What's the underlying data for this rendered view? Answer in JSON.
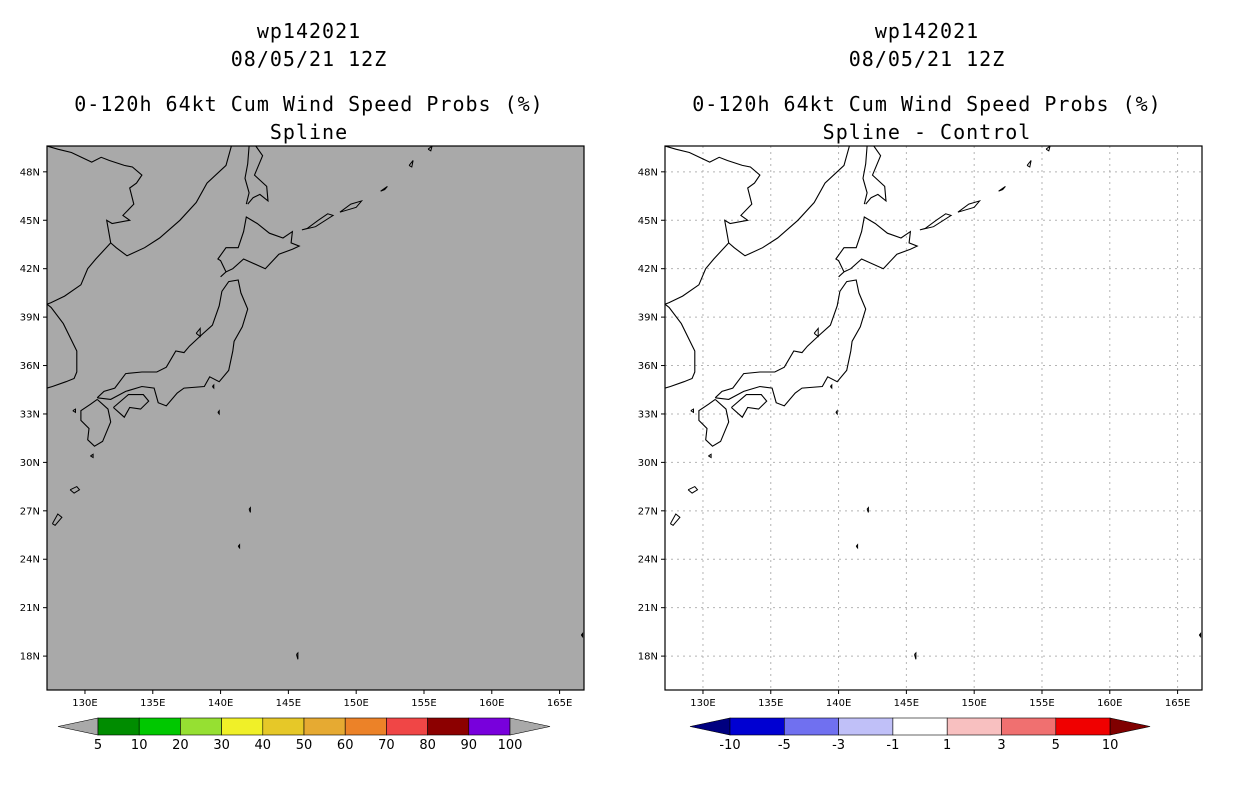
{
  "panels": [
    {
      "id": "spline",
      "storm_id": "wp142021",
      "datetime": "08/05/21 12Z",
      "product": "0-120h 64kt Cum Wind Speed Probs (%)",
      "subtitle": "Spline",
      "map_fill": "#a9a9a9",
      "gridlines": false,
      "colorbar": {
        "labels": [
          "5",
          "10",
          "20",
          "30",
          "40",
          "50",
          "60",
          "70",
          "80",
          "90",
          "100"
        ],
        "colors": [
          "#008c00",
          "#00c800",
          "#96e032",
          "#f0f028",
          "#e6c828",
          "#e6aa32",
          "#ec8228",
          "#f04646",
          "#8c0000",
          "#7800dc"
        ],
        "end_colors": [
          "#a9a9a9",
          "#a9a9a9"
        ]
      }
    },
    {
      "id": "spline-control",
      "storm_id": "wp142021",
      "datetime": "08/05/21 12Z",
      "product": "0-120h 64kt Cum Wind Speed Probs (%)",
      "subtitle": "Spline - Control",
      "map_fill": "#ffffff",
      "gridlines": true,
      "colorbar": {
        "labels": [
          "-10",
          "-5",
          "-3",
          "-1",
          "1",
          "3",
          "5",
          "10"
        ],
        "colors": [
          "#0000d2",
          "#7070f0",
          "#c0c0f8",
          "#ffffff",
          "#f8c0c0",
          "#f07070",
          "#f00000"
        ],
        "end_colors": [
          "#000080",
          "#800000"
        ]
      }
    }
  ],
  "lat_labels": [
    "48N",
    "45N",
    "42N",
    "39N",
    "36N",
    "33N",
    "30N",
    "27N",
    "24N",
    "21N",
    "18N"
  ],
  "lon_labels": [
    "130E",
    "135E",
    "140E",
    "145E",
    "150E",
    "155E",
    "160E",
    "165E"
  ]
}
